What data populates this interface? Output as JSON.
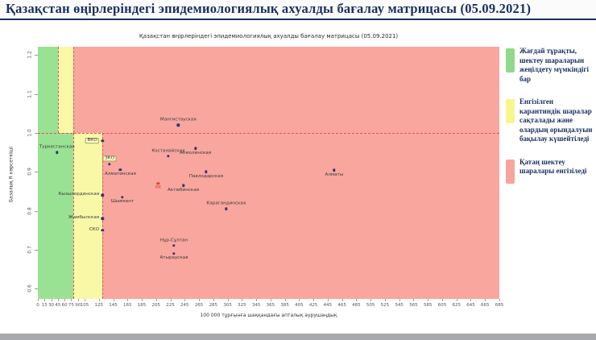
{
  "header": {
    "title": "Қазақстан өңірлеріндегі эпидемиологиялық ахуалды бағалау матрицасы  (05.09.2021)"
  },
  "chart_data": {
    "type": "scatter",
    "title": "Қазақстан өңірлеріндегі эпидемиологиялық ахуалды бағалау матрицасы (05.09.2021)",
    "xlabel": "100 000 тұрғынға шаққандағы апталық аурушаңдық",
    "ylabel": "Базалық R көрсеткіші",
    "xlim": [
      0,
      700
    ],
    "ylim": [
      0.57,
      1.22
    ],
    "x_ticks": [
      0,
      15,
      30,
      45,
      60,
      75,
      90,
      105,
      125,
      145,
      165,
      185,
      205,
      225,
      245,
      265,
      285,
      305,
      325,
      345,
      365,
      385,
      405,
      425,
      445,
      465,
      485,
      505,
      525,
      545,
      565,
      585,
      605,
      625,
      645,
      665,
      685
    ],
    "y_ticks": [
      "1.2",
      "1.1",
      "1.0",
      "0.9",
      "0.8",
      "0.7",
      "0.6"
    ],
    "reference_r": 1.0,
    "grid": false,
    "zone_colors": {
      "green": "#99e293",
      "yellow": "#f8f8a6",
      "red": "#f8a69e"
    },
    "zones": {
      "above_r1": {
        "green_max": 45,
        "yellow_max": 80
      },
      "below_r1": {
        "green_max": 80,
        "yellow_max": 130
      }
    },
    "point_color": "#33337a",
    "points": [
      {
        "name": "Туркестанская",
        "x": 43,
        "r": 0.95,
        "label_pos": "above"
      },
      {
        "name": "ВКО",
        "x": 130,
        "r": 0.98,
        "label_pos": "left",
        "boxed": true
      },
      {
        "name": "ЗКО",
        "x": 140,
        "r": 0.92,
        "label_pos": "above",
        "boxed": true
      },
      {
        "name": "Алматинская",
        "x": 155,
        "r": 0.905,
        "label_pos": "below"
      },
      {
        "name": "Кызылординская",
        "x": 130,
        "r": 0.84,
        "label_pos": "left"
      },
      {
        "name": "Шымкент",
        "x": 158,
        "r": 0.835,
        "label_pos": "below"
      },
      {
        "name": "Жамбылская",
        "x": 130,
        "r": 0.78,
        "label_pos": "left"
      },
      {
        "name": "СКО",
        "x": 130,
        "r": 0.75,
        "label_pos": "left"
      },
      {
        "name": "Мангистауская",
        "x": 236,
        "r": 1.02,
        "label_pos": "above"
      },
      {
        "name": "Костанайская",
        "x": 222,
        "r": 0.94,
        "label_pos": "above"
      },
      {
        "name": "Акмолинская",
        "x": 260,
        "r": 0.96,
        "label_pos": "below"
      },
      {
        "name": "Павлодарская",
        "x": 275,
        "r": 0.9,
        "label_pos": "below"
      },
      {
        "name": "РК",
        "x": 208,
        "r": 0.87,
        "label_pos": "below",
        "color": "#e03b30"
      },
      {
        "name": "Актюбинская",
        "x": 243,
        "r": 0.865,
        "label_pos": "below"
      },
      {
        "name": "Карагандинская",
        "x": 303,
        "r": 0.805,
        "label_pos": "above"
      },
      {
        "name": "Алматы",
        "x": 454,
        "r": 0.904,
        "label_pos": "below"
      },
      {
        "name": "Нұр-Сұлтан",
        "x": 230,
        "r": 0.71,
        "label_pos": "above"
      },
      {
        "name": "Атырауская",
        "x": 230,
        "r": 0.69,
        "label_pos": "below"
      }
    ]
  },
  "legend": {
    "items": [
      {
        "label": "Жағдай тұрақты, шектеу шараларын жеңілдету мүмкіндігі бар",
        "color": "#90d98c"
      },
      {
        "label": "Енгізілген карантиндік шаралар сақталады және олардың орындалуын бақылау күшейтіледі",
        "color": "#f6f68e"
      },
      {
        "label": "Қатаң шектеу шаралары енгізіледі",
        "color": "#f6a49c"
      }
    ]
  }
}
